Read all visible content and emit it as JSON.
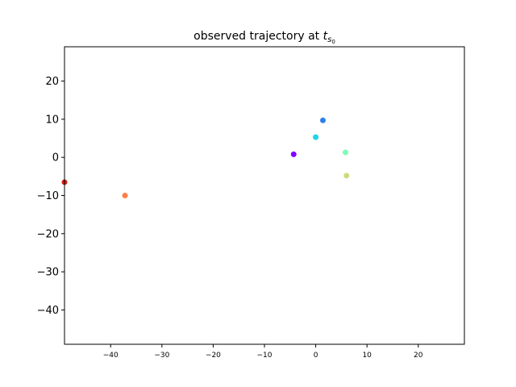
{
  "chart_data": {
    "type": "scatter",
    "title": "observed trajectory at ",
    "title_math": {
      "base": "t",
      "sub": "s",
      "subsub": "0"
    },
    "xlabel": "",
    "ylabel": "",
    "xlim": [
      -49,
      29
    ],
    "ylim": [
      -49,
      29
    ],
    "xticks": [
      -40,
      -30,
      -20,
      -10,
      0,
      10,
      20
    ],
    "yticks": [
      -40,
      -30,
      -20,
      -10,
      0,
      10,
      20
    ],
    "xtick_labels": [
      "−40",
      "−30",
      "−20",
      "−10",
      "0",
      "10",
      "20"
    ],
    "ytick_labels": [
      "−40",
      "−30",
      "−20",
      "−10",
      "0",
      "10",
      "20"
    ],
    "grid": false,
    "points": [
      {
        "x": -4.3,
        "y": 0.8,
        "color": "#8000ff"
      },
      {
        "x": 1.4,
        "y": 9.7,
        "color": "#2f7fe9"
      },
      {
        "x": 0.0,
        "y": 5.3,
        "color": "#22d3e6"
      },
      {
        "x": 5.8,
        "y": 1.3,
        "color": "#7dfcb8"
      },
      {
        "x": 6.0,
        "y": -4.8,
        "color": "#cfda7e"
      },
      {
        "x": -37.2,
        "y": -10.0,
        "color": "#ff7f4a"
      },
      {
        "x": -49.0,
        "y": -6.5,
        "color": "#d42010"
      }
    ]
  }
}
